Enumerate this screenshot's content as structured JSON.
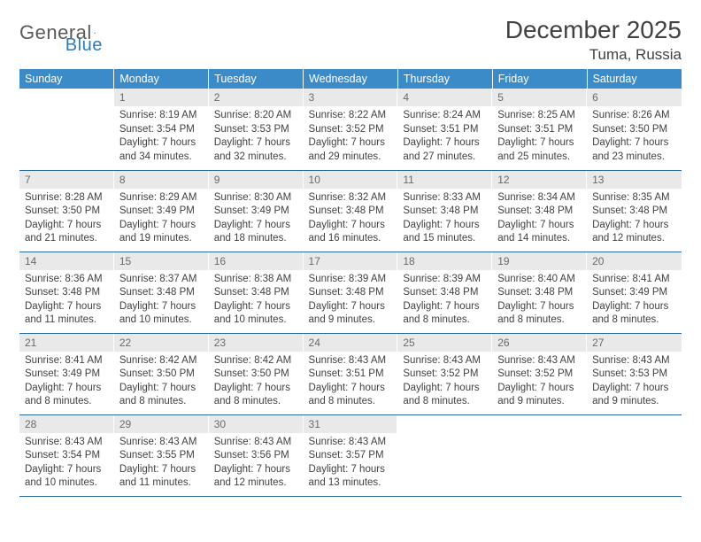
{
  "logo": {
    "text1": "General",
    "text2": "Blue"
  },
  "title": "December 2025",
  "location": "Tuma, Russia",
  "colors": {
    "header_bg": "#3b8bc8",
    "header_text": "#ffffff",
    "daynum_bg": "#e9e9e9",
    "daynum_text": "#6a6a6a",
    "body_text": "#414141",
    "row_border": "#2a6aa0"
  },
  "typography": {
    "title_fontsize": 28,
    "location_fontsize": 17,
    "header_cell_fontsize": 12.5,
    "cell_fontsize": 11.5
  },
  "headers": [
    "Sunday",
    "Monday",
    "Tuesday",
    "Wednesday",
    "Thursday",
    "Friday",
    "Saturday"
  ],
  "weeks": [
    [
      {
        "n": "",
        "sr": "",
        "ss": "",
        "dl": ""
      },
      {
        "n": "1",
        "sr": "Sunrise: 8:19 AM",
        "ss": "Sunset: 3:54 PM",
        "dl": "Daylight: 7 hours and 34 minutes."
      },
      {
        "n": "2",
        "sr": "Sunrise: 8:20 AM",
        "ss": "Sunset: 3:53 PM",
        "dl": "Daylight: 7 hours and 32 minutes."
      },
      {
        "n": "3",
        "sr": "Sunrise: 8:22 AM",
        "ss": "Sunset: 3:52 PM",
        "dl": "Daylight: 7 hours and 29 minutes."
      },
      {
        "n": "4",
        "sr": "Sunrise: 8:24 AM",
        "ss": "Sunset: 3:51 PM",
        "dl": "Daylight: 7 hours and 27 minutes."
      },
      {
        "n": "5",
        "sr": "Sunrise: 8:25 AM",
        "ss": "Sunset: 3:51 PM",
        "dl": "Daylight: 7 hours and 25 minutes."
      },
      {
        "n": "6",
        "sr": "Sunrise: 8:26 AM",
        "ss": "Sunset: 3:50 PM",
        "dl": "Daylight: 7 hours and 23 minutes."
      }
    ],
    [
      {
        "n": "7",
        "sr": "Sunrise: 8:28 AM",
        "ss": "Sunset: 3:50 PM",
        "dl": "Daylight: 7 hours and 21 minutes."
      },
      {
        "n": "8",
        "sr": "Sunrise: 8:29 AM",
        "ss": "Sunset: 3:49 PM",
        "dl": "Daylight: 7 hours and 19 minutes."
      },
      {
        "n": "9",
        "sr": "Sunrise: 8:30 AM",
        "ss": "Sunset: 3:49 PM",
        "dl": "Daylight: 7 hours and 18 minutes."
      },
      {
        "n": "10",
        "sr": "Sunrise: 8:32 AM",
        "ss": "Sunset: 3:48 PM",
        "dl": "Daylight: 7 hours and 16 minutes."
      },
      {
        "n": "11",
        "sr": "Sunrise: 8:33 AM",
        "ss": "Sunset: 3:48 PM",
        "dl": "Daylight: 7 hours and 15 minutes."
      },
      {
        "n": "12",
        "sr": "Sunrise: 8:34 AM",
        "ss": "Sunset: 3:48 PM",
        "dl": "Daylight: 7 hours and 14 minutes."
      },
      {
        "n": "13",
        "sr": "Sunrise: 8:35 AM",
        "ss": "Sunset: 3:48 PM",
        "dl": "Daylight: 7 hours and 12 minutes."
      }
    ],
    [
      {
        "n": "14",
        "sr": "Sunrise: 8:36 AM",
        "ss": "Sunset: 3:48 PM",
        "dl": "Daylight: 7 hours and 11 minutes."
      },
      {
        "n": "15",
        "sr": "Sunrise: 8:37 AM",
        "ss": "Sunset: 3:48 PM",
        "dl": "Daylight: 7 hours and 10 minutes."
      },
      {
        "n": "16",
        "sr": "Sunrise: 8:38 AM",
        "ss": "Sunset: 3:48 PM",
        "dl": "Daylight: 7 hours and 10 minutes."
      },
      {
        "n": "17",
        "sr": "Sunrise: 8:39 AM",
        "ss": "Sunset: 3:48 PM",
        "dl": "Daylight: 7 hours and 9 minutes."
      },
      {
        "n": "18",
        "sr": "Sunrise: 8:39 AM",
        "ss": "Sunset: 3:48 PM",
        "dl": "Daylight: 7 hours and 8 minutes."
      },
      {
        "n": "19",
        "sr": "Sunrise: 8:40 AM",
        "ss": "Sunset: 3:48 PM",
        "dl": "Daylight: 7 hours and 8 minutes."
      },
      {
        "n": "20",
        "sr": "Sunrise: 8:41 AM",
        "ss": "Sunset: 3:49 PM",
        "dl": "Daylight: 7 hours and 8 minutes."
      }
    ],
    [
      {
        "n": "21",
        "sr": "Sunrise: 8:41 AM",
        "ss": "Sunset: 3:49 PM",
        "dl": "Daylight: 7 hours and 8 minutes."
      },
      {
        "n": "22",
        "sr": "Sunrise: 8:42 AM",
        "ss": "Sunset: 3:50 PM",
        "dl": "Daylight: 7 hours and 8 minutes."
      },
      {
        "n": "23",
        "sr": "Sunrise: 8:42 AM",
        "ss": "Sunset: 3:50 PM",
        "dl": "Daylight: 7 hours and 8 minutes."
      },
      {
        "n": "24",
        "sr": "Sunrise: 8:43 AM",
        "ss": "Sunset: 3:51 PM",
        "dl": "Daylight: 7 hours and 8 minutes."
      },
      {
        "n": "25",
        "sr": "Sunrise: 8:43 AM",
        "ss": "Sunset: 3:52 PM",
        "dl": "Daylight: 7 hours and 8 minutes."
      },
      {
        "n": "26",
        "sr": "Sunrise: 8:43 AM",
        "ss": "Sunset: 3:52 PM",
        "dl": "Daylight: 7 hours and 9 minutes."
      },
      {
        "n": "27",
        "sr": "Sunrise: 8:43 AM",
        "ss": "Sunset: 3:53 PM",
        "dl": "Daylight: 7 hours and 9 minutes."
      }
    ],
    [
      {
        "n": "28",
        "sr": "Sunrise: 8:43 AM",
        "ss": "Sunset: 3:54 PM",
        "dl": "Daylight: 7 hours and 10 minutes."
      },
      {
        "n": "29",
        "sr": "Sunrise: 8:43 AM",
        "ss": "Sunset: 3:55 PM",
        "dl": "Daylight: 7 hours and 11 minutes."
      },
      {
        "n": "30",
        "sr": "Sunrise: 8:43 AM",
        "ss": "Sunset: 3:56 PM",
        "dl": "Daylight: 7 hours and 12 minutes."
      },
      {
        "n": "31",
        "sr": "Sunrise: 8:43 AM",
        "ss": "Sunset: 3:57 PM",
        "dl": "Daylight: 7 hours and 13 minutes."
      },
      {
        "n": "",
        "sr": "",
        "ss": "",
        "dl": ""
      },
      {
        "n": "",
        "sr": "",
        "ss": "",
        "dl": ""
      },
      {
        "n": "",
        "sr": "",
        "ss": "",
        "dl": ""
      }
    ]
  ]
}
